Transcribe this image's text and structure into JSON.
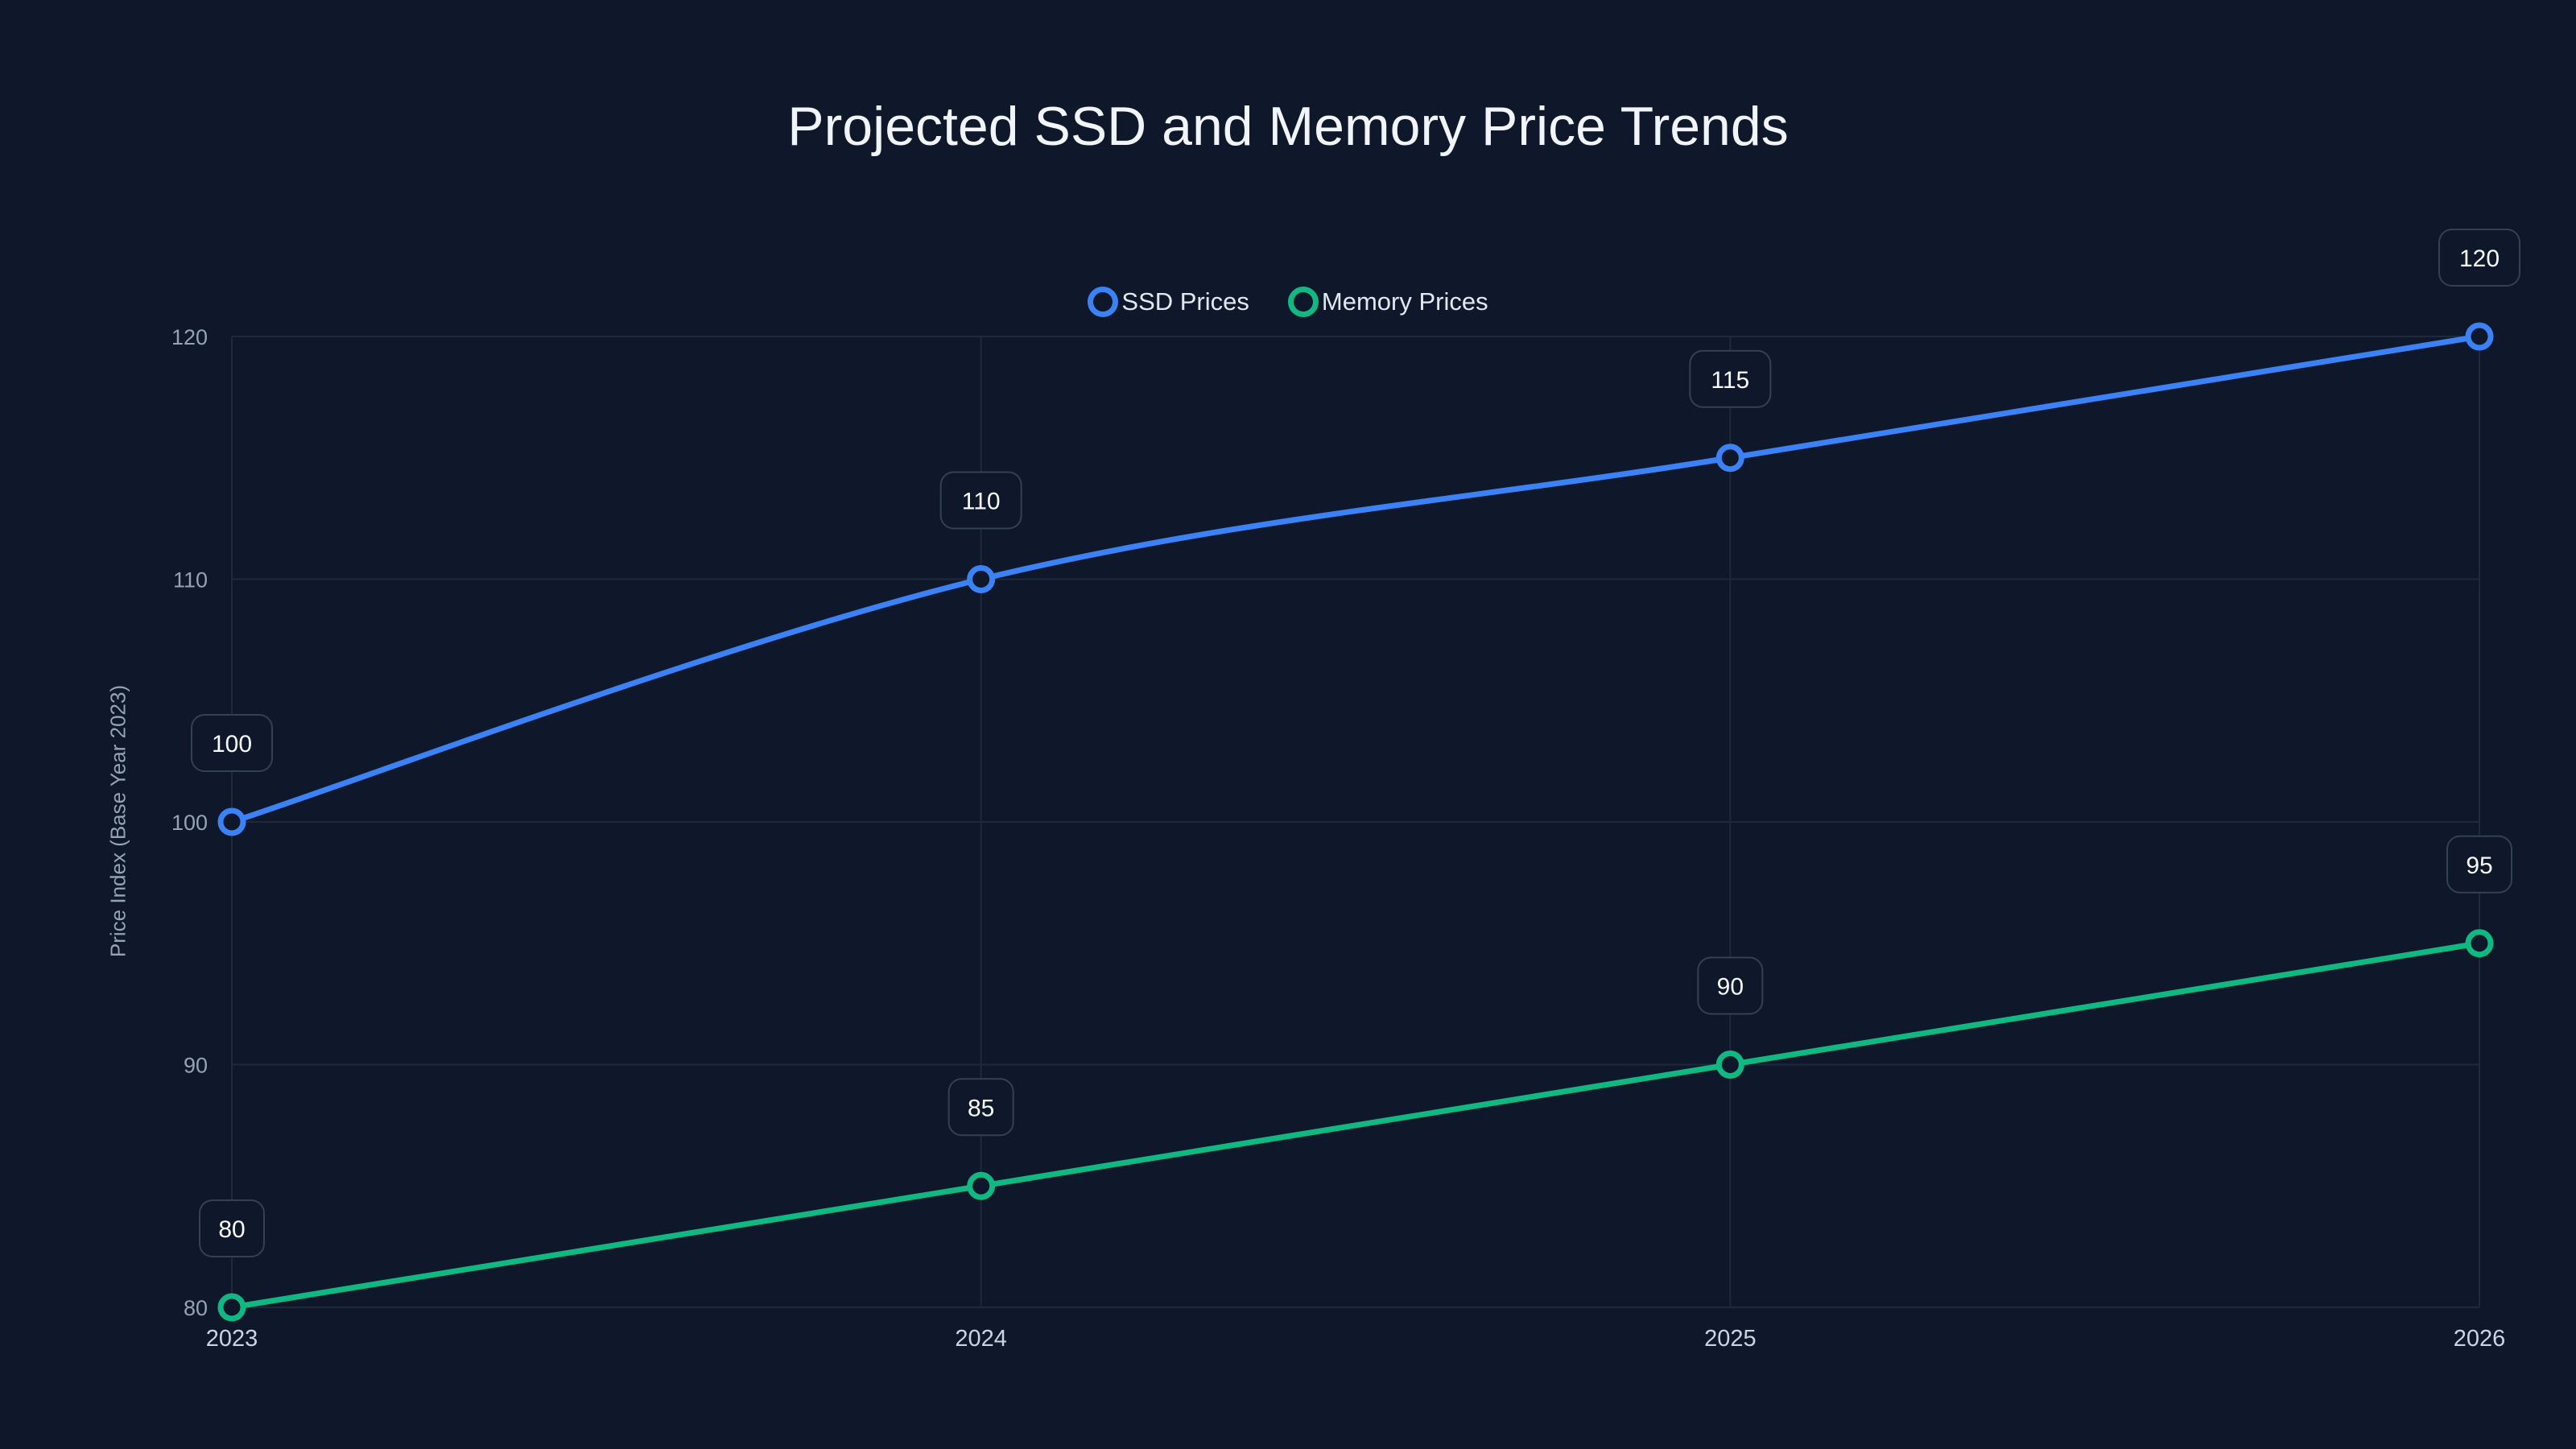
{
  "chart_data": {
    "type": "line",
    "title": "Projected SSD and Memory Price Trends",
    "xlabel": "",
    "ylabel": "Price Index (Base Year 2023)",
    "categories": [
      "2023",
      "2024",
      "2025",
      "2026"
    ],
    "y_ticks": [
      "80",
      "90",
      "100",
      "110",
      "120"
    ],
    "ylim": [
      80,
      120
    ],
    "grid": true,
    "legend_position": "top-center",
    "series": [
      {
        "name": "SSD Prices",
        "color": "#3b82f6",
        "values": [
          100,
          110,
          115,
          120
        ]
      },
      {
        "name": "Memory Prices",
        "color": "#10b981",
        "values": [
          80,
          85,
          90,
          95
        ]
      }
    ]
  }
}
